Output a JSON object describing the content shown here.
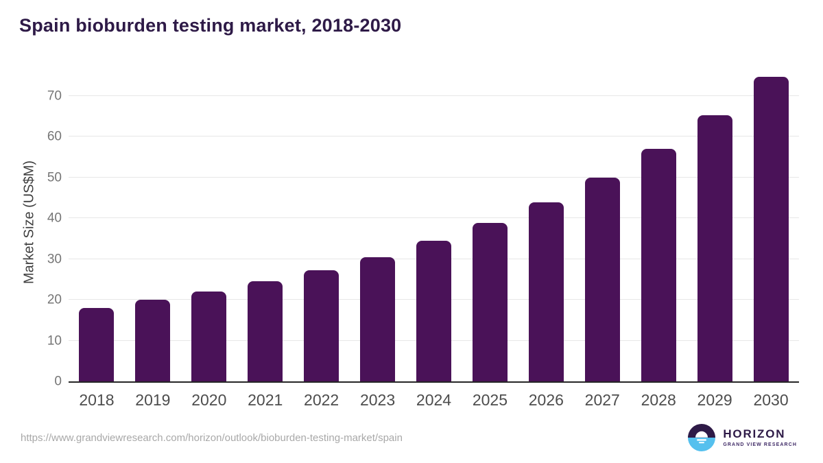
{
  "title": "Spain bioburden testing market, 2018-2030",
  "source_url": "https://www.grandviewresearch.com/horizon/outlook/bioburden-testing-market/spain",
  "logo": {
    "name": "HORIZON",
    "subtitle": "GRAND VIEW RESEARCH"
  },
  "colors": {
    "bar": "#4A1258",
    "title_text": "#2E1A47",
    "grid": "#E7E7E7",
    "axis": "#262626",
    "y_tick": "#757575",
    "x_tick": "#4D4D4D",
    "axis_title": "#3F3F3F",
    "url_text": "#A8A8A8",
    "logo_purple": "#2E1A47",
    "logo_blue": "#55C0EE",
    "logo_subtitle": "#3F2A66",
    "logo_sun": "#FFFFFF"
  },
  "chart_data": {
    "type": "bar",
    "title": "Spain bioburden testing market, 2018-2030",
    "categories": [
      "2018",
      "2019",
      "2020",
      "2021",
      "2022",
      "2023",
      "2024",
      "2025",
      "2026",
      "2027",
      "2028",
      "2029",
      "2030"
    ],
    "values": [
      18.0,
      20.0,
      22.0,
      24.5,
      27.3,
      30.5,
      34.5,
      38.8,
      43.9,
      50.0,
      57.0,
      65.2,
      74.7
    ],
    "xlabel": "",
    "ylabel": "Market Size (US$M)",
    "ylim": [
      0,
      76
    ],
    "yticks": [
      0,
      10,
      20,
      30,
      40,
      50,
      60,
      70
    ],
    "grid": true,
    "legend": false,
    "bar_color": "#4A1258"
  }
}
